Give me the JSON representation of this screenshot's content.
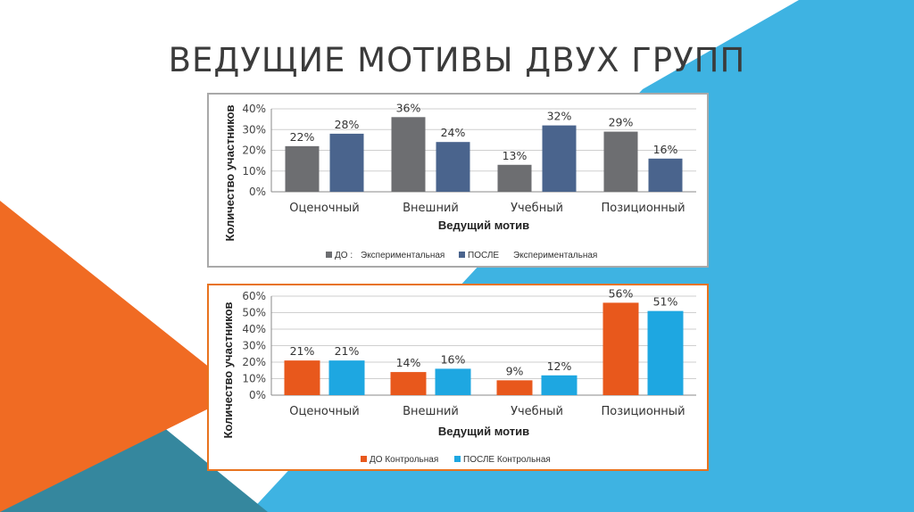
{
  "slide": {
    "title": "ВЕДУЩИЕ МОТИВЫ ДВУХ ГРУПП"
  },
  "colors": {
    "background_orange": "#f06b23",
    "background_blue": "#3eb3e2",
    "background_steel": "#35879e",
    "chart1_border": "#a9a9a9",
    "chart2_border": "#e8731f"
  },
  "chart_data": [
    {
      "type": "bar",
      "categories": [
        "Оценочный",
        "Внешний",
        "Учебный",
        "Позиционный"
      ],
      "series": [
        {
          "name": "ДО : Экспериментальная",
          "legend_marker": "ДО :",
          "legend_text": "Экспериментальная",
          "color": "#6d6e71",
          "values": [
            22,
            36,
            13,
            29
          ]
        },
        {
          "name": "ПОСЛЕ Экспериментальная",
          "legend_marker": "ПОСЛЕ",
          "legend_text": "Экспериментальная",
          "color": "#4a648d",
          "values": [
            28,
            24,
            32,
            16
          ]
        }
      ],
      "value_labels": [
        [
          "22%",
          "36%",
          "13%",
          "29%"
        ],
        [
          "28%",
          "24%",
          "32%",
          "16%"
        ]
      ],
      "ylim": [
        0,
        40
      ],
      "yticks": [
        0,
        10,
        20,
        30,
        40
      ],
      "ytick_labels": [
        "0%",
        "10%",
        "20%",
        "30%",
        "40%"
      ],
      "xlabel": "Ведущий мотив",
      "ylabel": "Количество участников",
      "grid": true,
      "legend_position": "bottom"
    },
    {
      "type": "bar",
      "categories": [
        "Оценочный",
        "Внешний",
        "Учебный",
        "Позиционный"
      ],
      "series": [
        {
          "name": "ДО Контрольная",
          "color": "#e8581c",
          "values": [
            21,
            14,
            9,
            56
          ]
        },
        {
          "name": "ПОСЛЕ Контрольная",
          "color": "#1ea7e1",
          "values": [
            21,
            16,
            12,
            51
          ]
        }
      ],
      "value_labels": [
        [
          "21%",
          "14%",
          "9%",
          "56%"
        ],
        [
          "21%",
          "16%",
          "12%",
          "51%"
        ]
      ],
      "ylim": [
        0,
        60
      ],
      "yticks": [
        0,
        10,
        20,
        30,
        40,
        50,
        60
      ],
      "ytick_labels": [
        "0%",
        "10%",
        "20%",
        "30%",
        "40%",
        "50%",
        "60%"
      ],
      "xlabel": "Ведущий мотив",
      "ylabel": "Количество участников",
      "grid": true,
      "legend_position": "bottom"
    }
  ]
}
